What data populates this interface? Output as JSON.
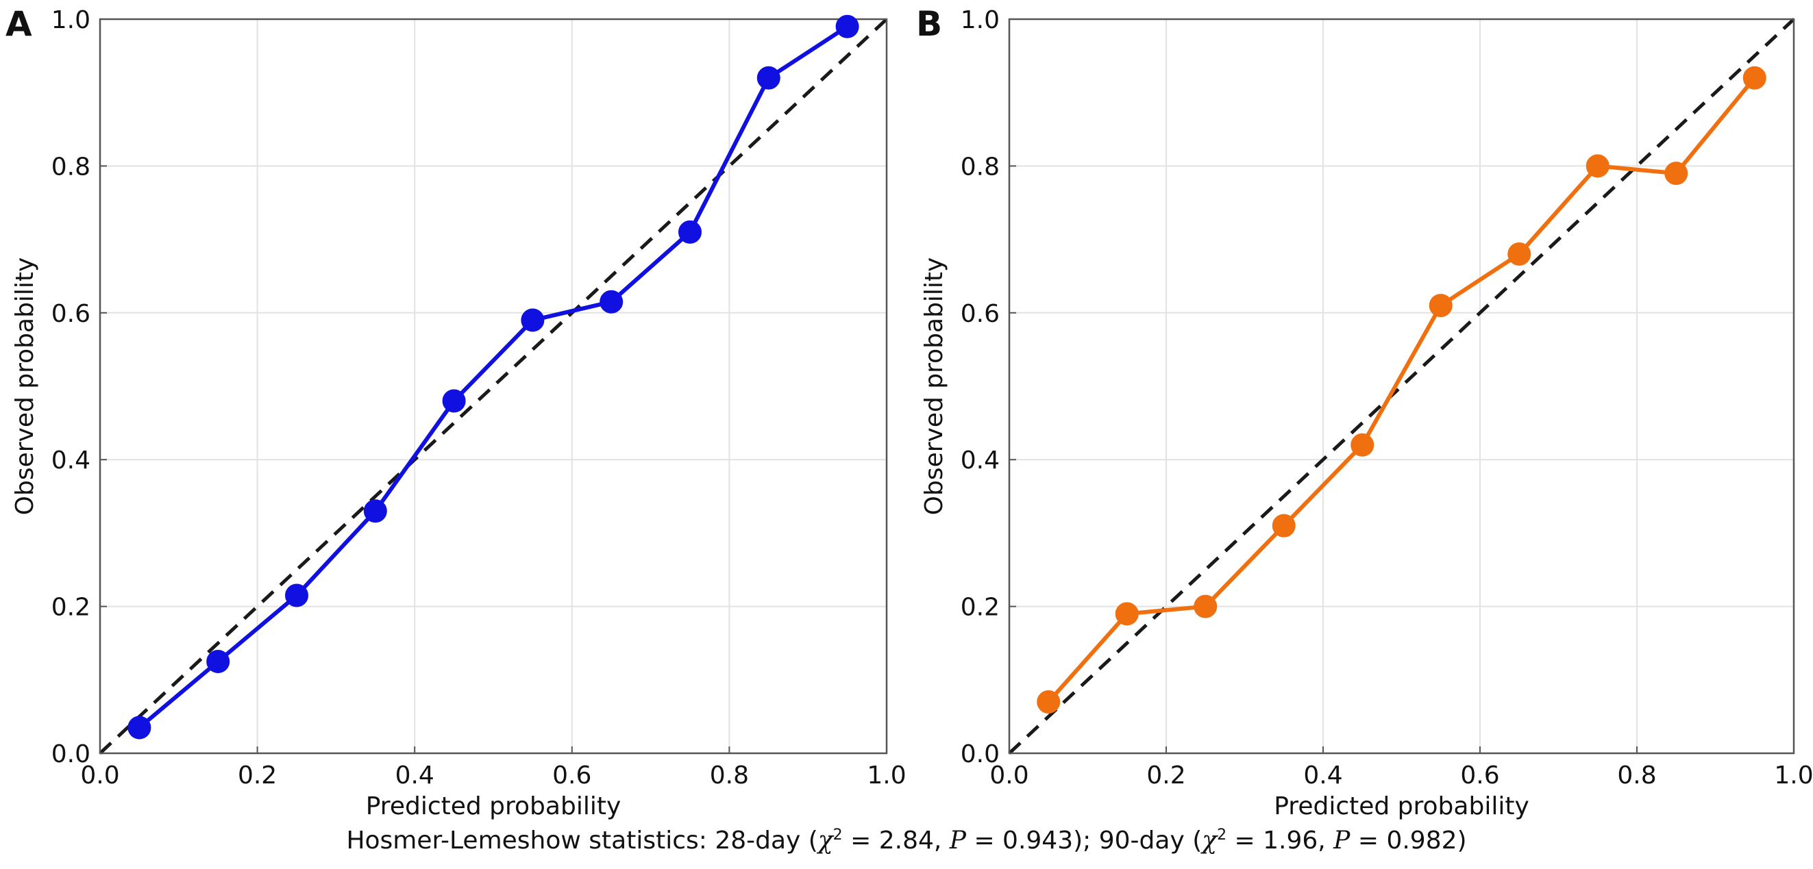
{
  "chart_data": [
    {
      "type": "line",
      "panel_label": "A",
      "xlabel": "Predicted probability",
      "ylabel": "Observed probability",
      "xlim": [
        0,
        1
      ],
      "ylim": [
        0,
        1
      ],
      "xticks": [
        "0.0",
        "0.2",
        "0.4",
        "0.6",
        "0.8",
        "1.0"
      ],
      "yticks": [
        "0.0",
        "0.2",
        "0.4",
        "0.6",
        "0.8",
        "1.0"
      ],
      "grid": true,
      "reference_line": {
        "x": [
          0,
          1
        ],
        "y": [
          0,
          1
        ],
        "style": "dashed",
        "color": "#1a1a1a"
      },
      "series": [
        {
          "color": "#1010e0",
          "x": [
            0.05,
            0.15,
            0.25,
            0.35,
            0.45,
            0.55,
            0.65,
            0.75,
            0.85,
            0.95
          ],
          "y": [
            0.035,
            0.125,
            0.215,
            0.33,
            0.48,
            0.59,
            0.615,
            0.71,
            0.92,
            0.99
          ]
        }
      ]
    },
    {
      "type": "line",
      "panel_label": "B",
      "xlabel": "Predicted probability",
      "ylabel": "Observed probability",
      "xlim": [
        0,
        1
      ],
      "ylim": [
        0,
        1
      ],
      "xticks": [
        "0.0",
        "0.2",
        "0.4",
        "0.6",
        "0.8",
        "1.0"
      ],
      "yticks": [
        "0.0",
        "0.2",
        "0.4",
        "0.6",
        "0.8",
        "1.0"
      ],
      "grid": true,
      "reference_line": {
        "x": [
          0,
          1
        ],
        "y": [
          0,
          1
        ],
        "style": "dashed",
        "color": "#1a1a1a"
      },
      "series": [
        {
          "color": "#f07010",
          "x": [
            0.05,
            0.15,
            0.25,
            0.35,
            0.45,
            0.55,
            0.65,
            0.75,
            0.85,
            0.95
          ],
          "y": [
            0.07,
            0.19,
            0.2,
            0.31,
            0.42,
            0.61,
            0.68,
            0.8,
            0.79,
            0.92
          ]
        }
      ]
    }
  ],
  "caption": {
    "prefix": "Hosmer-Lemeshow statistics: 28-day (",
    "chi_symbol": "χ",
    "chi_sup": "2",
    "part1_stat": " = 2.84, ",
    "p_symbol": "P",
    "part1_p": " = 0.943); 90-day (",
    "part2_stat": " = 1.96, ",
    "part2_p": " = 0.982)"
  }
}
